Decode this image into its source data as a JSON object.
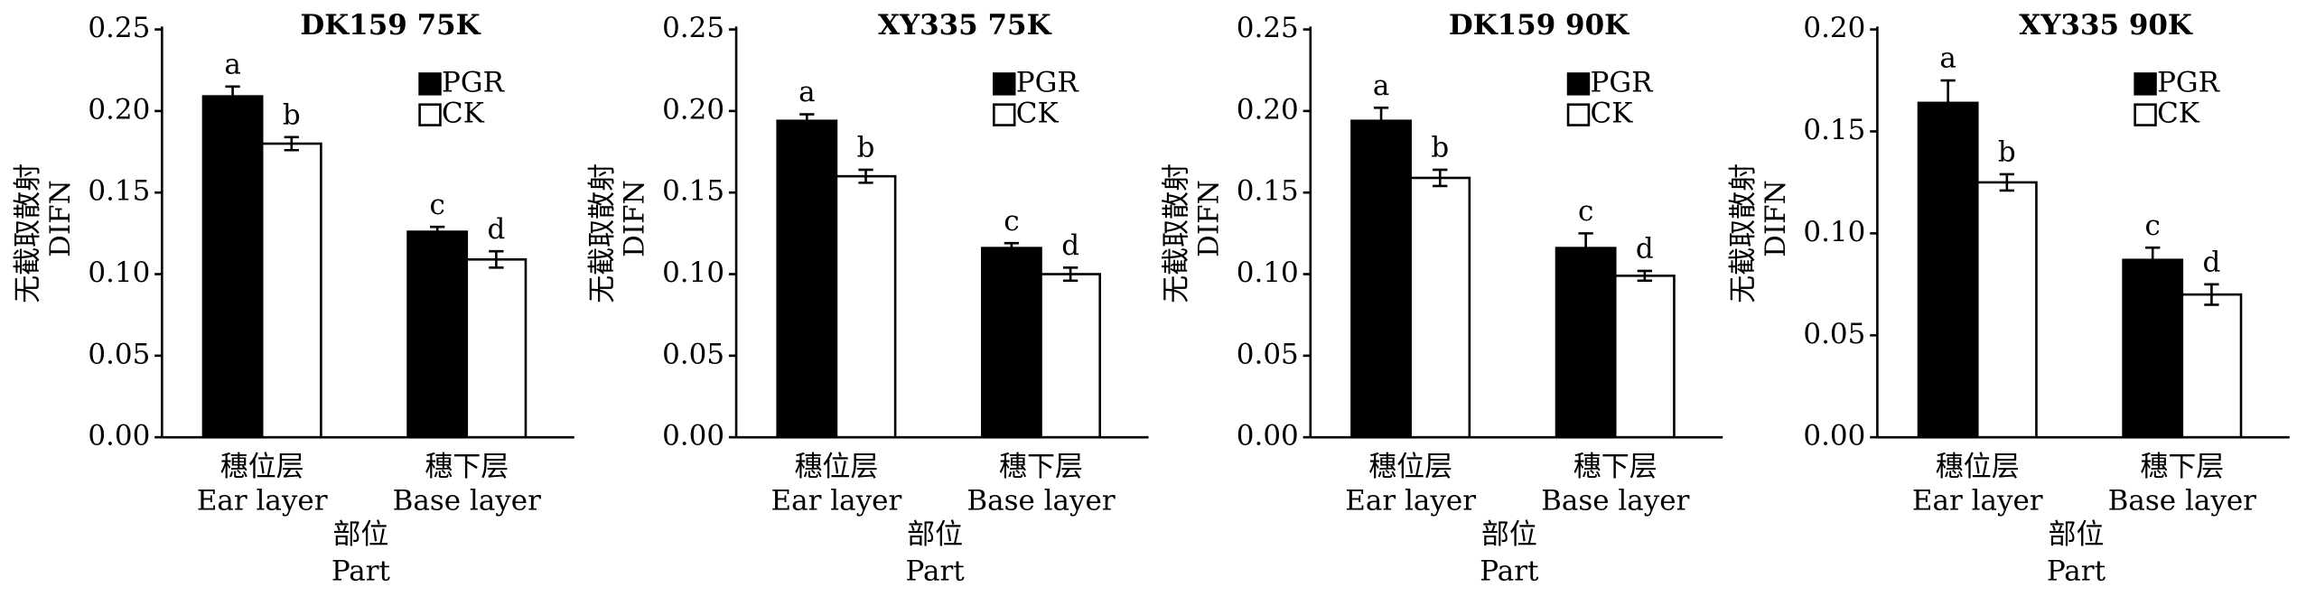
{
  "chart_data": [
    {
      "type": "bar",
      "title": "DK159  75K",
      "ylabel": [
        "无截取散射",
        "DIFN"
      ],
      "xlabel": [
        "部位",
        "Part"
      ],
      "categories": [
        "穗位层",
        "穗下层"
      ],
      "categories_en": [
        "Ear layer",
        "Base layer"
      ],
      "ylim": [
        0,
        0.25
      ],
      "yticks": [
        {
          "value": 0,
          "label": "0.00"
        },
        {
          "value": 0.05,
          "label": "0.05"
        },
        {
          "value": 0.1,
          "label": "0.10"
        },
        {
          "value": 0.15,
          "label": "0.15"
        },
        {
          "value": 0.2,
          "label": "0.20"
        },
        {
          "value": 0.25,
          "label": "0.25"
        }
      ],
      "series": [
        {
          "name": "PGR",
          "color": "#000000",
          "values": [
            0.209,
            0.126
          ],
          "errors": [
            0.006,
            0.003
          ],
          "significance": [
            "a",
            "c"
          ]
        },
        {
          "name": "CK",
          "color": "#ffffff",
          "values": [
            0.18,
            0.109
          ],
          "errors": [
            0.004,
            0.005
          ],
          "significance": [
            "b",
            "d"
          ]
        }
      ]
    },
    {
      "type": "bar",
      "title": "XY335  75K",
      "ylabel": [
        "无截取散射",
        "DIFN"
      ],
      "xlabel": [
        "部位",
        "Part"
      ],
      "categories": [
        "穗位层",
        "穗下层"
      ],
      "categories_en": [
        "Ear layer",
        "Base layer"
      ],
      "ylim": [
        0,
        0.25
      ],
      "yticks": [
        {
          "value": 0,
          "label": "0.00"
        },
        {
          "value": 0.05,
          "label": "0.05"
        },
        {
          "value": 0.1,
          "label": "0.10"
        },
        {
          "value": 0.15,
          "label": "0.15"
        },
        {
          "value": 0.2,
          "label": "0.20"
        },
        {
          "value": 0.25,
          "label": "0.25"
        }
      ],
      "series": [
        {
          "name": "PGR",
          "color": "#000000",
          "values": [
            0.194,
            0.116
          ],
          "errors": [
            0.004,
            0.003
          ],
          "significance": [
            "a",
            "c"
          ]
        },
        {
          "name": "CK",
          "color": "#ffffff",
          "values": [
            0.16,
            0.1
          ],
          "errors": [
            0.004,
            0.004
          ],
          "significance": [
            "b",
            "d"
          ]
        }
      ]
    },
    {
      "type": "bar",
      "title": "DK159  90K",
      "ylabel": [
        "无截取散射",
        "DIFN"
      ],
      "xlabel": [
        "部位",
        "Part"
      ],
      "categories": [
        "穗位层",
        "穗下层"
      ],
      "categories_en": [
        "Ear layer",
        "Base layer"
      ],
      "ylim": [
        0,
        0.25
      ],
      "yticks": [
        {
          "value": 0,
          "label": "0.00"
        },
        {
          "value": 0.05,
          "label": "0.05"
        },
        {
          "value": 0.1,
          "label": "0.10"
        },
        {
          "value": 0.15,
          "label": "0.15"
        },
        {
          "value": 0.2,
          "label": "0.20"
        },
        {
          "value": 0.25,
          "label": "0.25"
        }
      ],
      "series": [
        {
          "name": "PGR",
          "color": "#000000",
          "values": [
            0.194,
            0.116
          ],
          "errors": [
            0.008,
            0.009
          ],
          "significance": [
            "a",
            "c"
          ]
        },
        {
          "name": "CK",
          "color": "#ffffff",
          "values": [
            0.159,
            0.099
          ],
          "errors": [
            0.005,
            0.003
          ],
          "significance": [
            "b",
            "d"
          ]
        }
      ]
    },
    {
      "type": "bar",
      "title": "XY335  90K",
      "ylabel": [
        "无截取散射",
        "DIFN"
      ],
      "xlabel": [
        "部位",
        "Part"
      ],
      "categories": [
        "穗位层",
        "穗下层"
      ],
      "categories_en": [
        "Ear layer",
        "Base layer"
      ],
      "ylim": [
        0,
        0.2
      ],
      "yticks": [
        {
          "value": 0,
          "label": "0.00"
        },
        {
          "value": 0.05,
          "label": "0.05"
        },
        {
          "value": 0.1,
          "label": "0.10"
        },
        {
          "value": 0.15,
          "label": "0.15"
        },
        {
          "value": 0.2,
          "label": "0.20"
        }
      ],
      "series": [
        {
          "name": "PGR",
          "color": "#000000",
          "values": [
            0.164,
            0.087
          ],
          "errors": [
            0.011,
            0.006
          ],
          "significance": [
            "a",
            "c"
          ]
        },
        {
          "name": "CK",
          "color": "#ffffff",
          "values": [
            0.125,
            0.07
          ],
          "errors": [
            0.004,
            0.005
          ],
          "significance": [
            "b",
            "d"
          ]
        }
      ]
    }
  ]
}
